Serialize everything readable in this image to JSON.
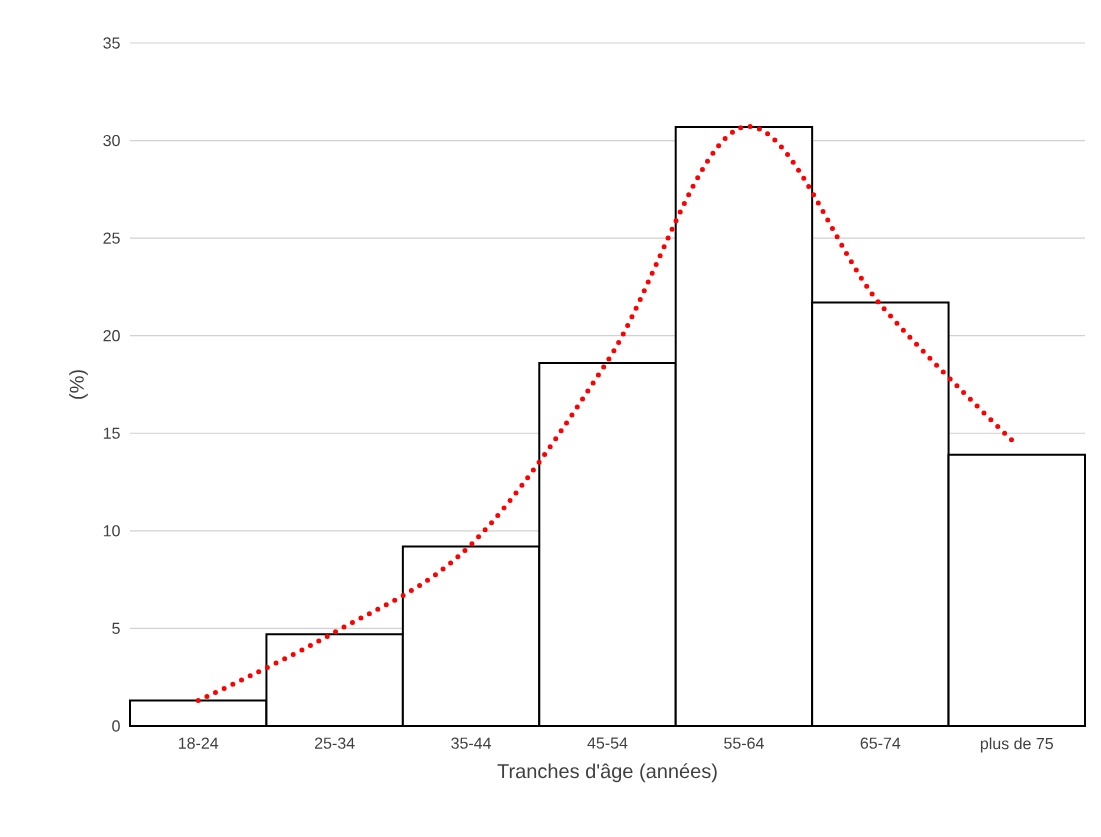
{
  "chart_data": {
    "type": "bar",
    "xlabel": "Tranches d'âge (années)",
    "ylabel": "(%)",
    "categories": [
      "18-24",
      "25-34",
      "35-44",
      "45-54",
      "55-64",
      "65-74",
      "plus de 75"
    ],
    "ylim": [
      0,
      35
    ],
    "yticks": [
      0,
      5,
      10,
      15,
      20,
      25,
      30,
      35
    ],
    "grid": "y",
    "series": [
      {
        "color": "#ffffff",
        "values": [
          1.3,
          4.7,
          9.2,
          18.6,
          30.7,
          21.7,
          13.9
        ]
      },
      {
        "type": "line",
        "color": "#ff0000",
        "line_style": "dotted",
        "values": [
          1.3,
          4.8,
          9.3,
          18.7,
          30.7,
          21.6,
          14.4
        ]
      }
    ]
  }
}
